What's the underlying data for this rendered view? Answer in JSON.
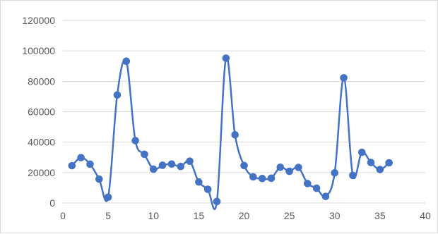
{
  "chart_data": {
    "type": "scatter",
    "style": "smoothed-line-with-markers",
    "series_color": "#4472c4",
    "title": "",
    "xlabel": "",
    "ylabel": "",
    "xlim": [
      0,
      40
    ],
    "ylim": [
      0,
      120000
    ],
    "x_ticks": [
      0,
      5,
      10,
      15,
      20,
      25,
      30,
      35,
      40
    ],
    "y_ticks": [
      0,
      20000,
      40000,
      60000,
      80000,
      100000,
      120000
    ],
    "x_tick_labels": [
      "0",
      "5",
      "10",
      "15",
      "20",
      "25",
      "30",
      "35",
      "40"
    ],
    "y_tick_labels": [
      "0",
      "20000",
      "40000",
      "60000",
      "80000",
      "100000",
      "120000"
    ],
    "grid": "horizontal",
    "legend": "none",
    "series": [
      {
        "x": [
          1,
          2,
          3,
          4,
          5,
          6,
          7,
          8,
          9,
          10,
          11,
          12,
          13,
          14,
          15,
          16,
          17,
          18,
          19,
          20,
          21,
          22,
          23,
          24,
          25,
          26,
          27,
          28,
          29,
          30,
          31,
          32,
          33,
          34,
          35,
          36
        ],
        "values": [
          24500,
          29800,
          25500,
          15700,
          3800,
          71000,
          93200,
          41000,
          32000,
          22200,
          24800,
          25600,
          24000,
          27500,
          13800,
          9000,
          1000,
          95200,
          44800,
          24600,
          17200,
          16100,
          16300,
          23500,
          20800,
          23400,
          12800,
          9700,
          4300,
          19800,
          82300,
          18100,
          33300,
          26600,
          22000,
          26400
        ]
      }
    ]
  }
}
